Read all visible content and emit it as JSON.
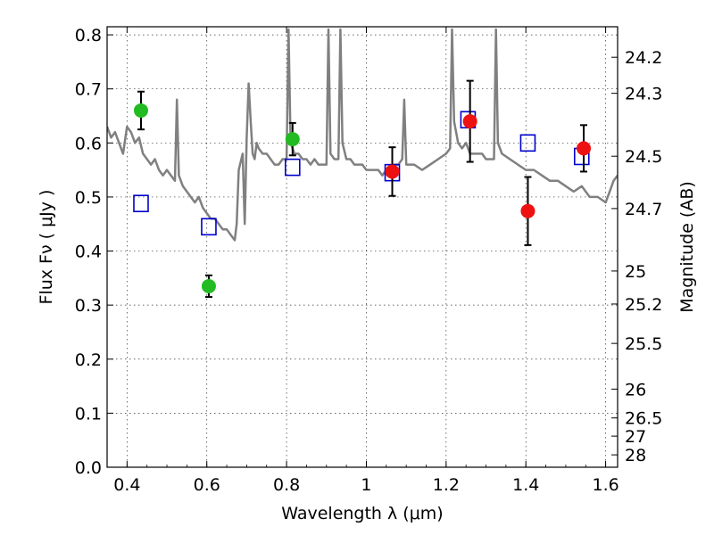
{
  "chart_data": {
    "type": "scatter",
    "xlabel": "Wavelength  λ (μm)",
    "ylabel": "Flux  Fν  ( μJy )",
    "ylabel_right": "Magnitude (AB)",
    "xlim": [
      0.35,
      1.63
    ],
    "ylim": [
      0.0,
      0.815
    ],
    "grid": true,
    "x_ticks": [
      {
        "value": 0.4,
        "label": "0.4"
      },
      {
        "value": 0.6,
        "label": "0.6"
      },
      {
        "value": 0.8,
        "label": "0.8"
      },
      {
        "value": 1.0,
        "label": "1"
      },
      {
        "value": 1.2,
        "label": "1.2"
      },
      {
        "value": 1.4,
        "label": "1.4"
      },
      {
        "value": 1.6,
        "label": "1.6"
      }
    ],
    "y_ticks": [
      {
        "value": 0.0,
        "label": "0.0"
      },
      {
        "value": 0.1,
        "label": "0.1"
      },
      {
        "value": 0.2,
        "label": "0.2"
      },
      {
        "value": 0.3,
        "label": "0.3"
      },
      {
        "value": 0.4,
        "label": "0.4"
      },
      {
        "value": 0.5,
        "label": "0.5"
      },
      {
        "value": 0.6,
        "label": "0.6"
      },
      {
        "value": 0.7,
        "label": "0.7"
      },
      {
        "value": 0.8,
        "label": "0.8"
      }
    ],
    "right_ticks": [
      {
        "mag": 24.2,
        "label": "24.2"
      },
      {
        "mag": 24.3,
        "label": "24.3"
      },
      {
        "mag": 24.5,
        "label": "24.5"
      },
      {
        "mag": 24.7,
        "label": "24.7"
      },
      {
        "mag": 25,
        "label": "25"
      },
      {
        "mag": 25.2,
        "label": "25.2"
      },
      {
        "mag": 25.5,
        "label": "25.5"
      },
      {
        "mag": 26,
        "label": "26"
      },
      {
        "mag": 26.5,
        "label": "26.5"
      },
      {
        "mag": 27,
        "label": "27"
      },
      {
        "mag": 28,
        "label": "28"
      }
    ],
    "series": [
      {
        "kind": "spectrum",
        "color": "#808080",
        "x": [
          0.35,
          0.36,
          0.37,
          0.38,
          0.39,
          0.4,
          0.41,
          0.42,
          0.43,
          0.44,
          0.45,
          0.46,
          0.47,
          0.48,
          0.49,
          0.5,
          0.51,
          0.52,
          0.525,
          0.53,
          0.54,
          0.55,
          0.56,
          0.57,
          0.58,
          0.59,
          0.6,
          0.61,
          0.62,
          0.63,
          0.64,
          0.65,
          0.66,
          0.67,
          0.675,
          0.68,
          0.69,
          0.695,
          0.7,
          0.705,
          0.71,
          0.715,
          0.72,
          0.725,
          0.73,
          0.74,
          0.75,
          0.76,
          0.77,
          0.78,
          0.79,
          0.8,
          0.805,
          0.81,
          0.82,
          0.83,
          0.84,
          0.85,
          0.86,
          0.87,
          0.88,
          0.89,
          0.9,
          0.905,
          0.91,
          0.92,
          0.93,
          0.935,
          0.94,
          0.95,
          0.96,
          0.97,
          0.98,
          0.99,
          1.0,
          1.01,
          1.02,
          1.03,
          1.04,
          1.05,
          1.06,
          1.07,
          1.08,
          1.09,
          1.095,
          1.1,
          1.12,
          1.14,
          1.16,
          1.18,
          1.2,
          1.21,
          1.215,
          1.22,
          1.23,
          1.24,
          1.25,
          1.26,
          1.27,
          1.28,
          1.29,
          1.3,
          1.32,
          1.325,
          1.33,
          1.34,
          1.36,
          1.38,
          1.4,
          1.42,
          1.44,
          1.46,
          1.48,
          1.5,
          1.52,
          1.54,
          1.56,
          1.58,
          1.6,
          1.61,
          1.62,
          1.63
        ],
        "y": [
          0.63,
          0.61,
          0.62,
          0.6,
          0.58,
          0.63,
          0.62,
          0.6,
          0.61,
          0.58,
          0.57,
          0.56,
          0.57,
          0.55,
          0.54,
          0.55,
          0.54,
          0.53,
          0.68,
          0.54,
          0.52,
          0.51,
          0.5,
          0.49,
          0.5,
          0.48,
          0.47,
          0.46,
          0.46,
          0.45,
          0.44,
          0.44,
          0.43,
          0.42,
          0.45,
          0.55,
          0.58,
          0.45,
          0.61,
          0.71,
          0.64,
          0.58,
          0.57,
          0.6,
          0.59,
          0.58,
          0.58,
          0.57,
          0.56,
          0.56,
          0.57,
          0.57,
          0.81,
          0.6,
          0.58,
          0.58,
          0.57,
          0.57,
          0.56,
          0.57,
          0.56,
          0.56,
          0.56,
          0.81,
          0.58,
          0.57,
          0.57,
          0.81,
          0.6,
          0.57,
          0.57,
          0.56,
          0.56,
          0.56,
          0.55,
          0.55,
          0.55,
          0.55,
          0.54,
          0.55,
          0.55,
          0.56,
          0.56,
          0.57,
          0.68,
          0.56,
          0.56,
          0.55,
          0.56,
          0.57,
          0.58,
          0.59,
          0.81,
          0.64,
          0.6,
          0.59,
          0.6,
          0.58,
          0.58,
          0.58,
          0.58,
          0.57,
          0.57,
          0.81,
          0.6,
          0.58,
          0.57,
          0.56,
          0.55,
          0.55,
          0.54,
          0.53,
          0.53,
          0.52,
          0.51,
          0.52,
          0.5,
          0.5,
          0.49,
          0.51,
          0.53,
          0.54
        ]
      },
      {
        "kind": "markers",
        "marker": "square-open",
        "color": "#0000cc",
        "x": [
          0.435,
          0.605,
          0.815,
          1.065,
          1.255,
          1.405,
          1.54
        ],
        "y": [
          0.488,
          0.445,
          0.555,
          0.545,
          0.643,
          0.6,
          0.575
        ]
      },
      {
        "kind": "markers",
        "marker": "circle",
        "color": "#22bb22",
        "x": [
          0.435,
          0.605,
          0.815
        ],
        "y": [
          0.66,
          0.335,
          0.607
        ],
        "err": [
          0.035,
          0.02,
          0.03
        ]
      },
      {
        "kind": "markers",
        "marker": "circle",
        "color": "#ee1111",
        "x": [
          1.065,
          1.26,
          1.405,
          1.545
        ],
        "y": [
          0.547,
          0.64,
          0.474,
          0.59
        ],
        "err": [
          0.045,
          0.075,
          0.063,
          0.043
        ]
      }
    ]
  }
}
